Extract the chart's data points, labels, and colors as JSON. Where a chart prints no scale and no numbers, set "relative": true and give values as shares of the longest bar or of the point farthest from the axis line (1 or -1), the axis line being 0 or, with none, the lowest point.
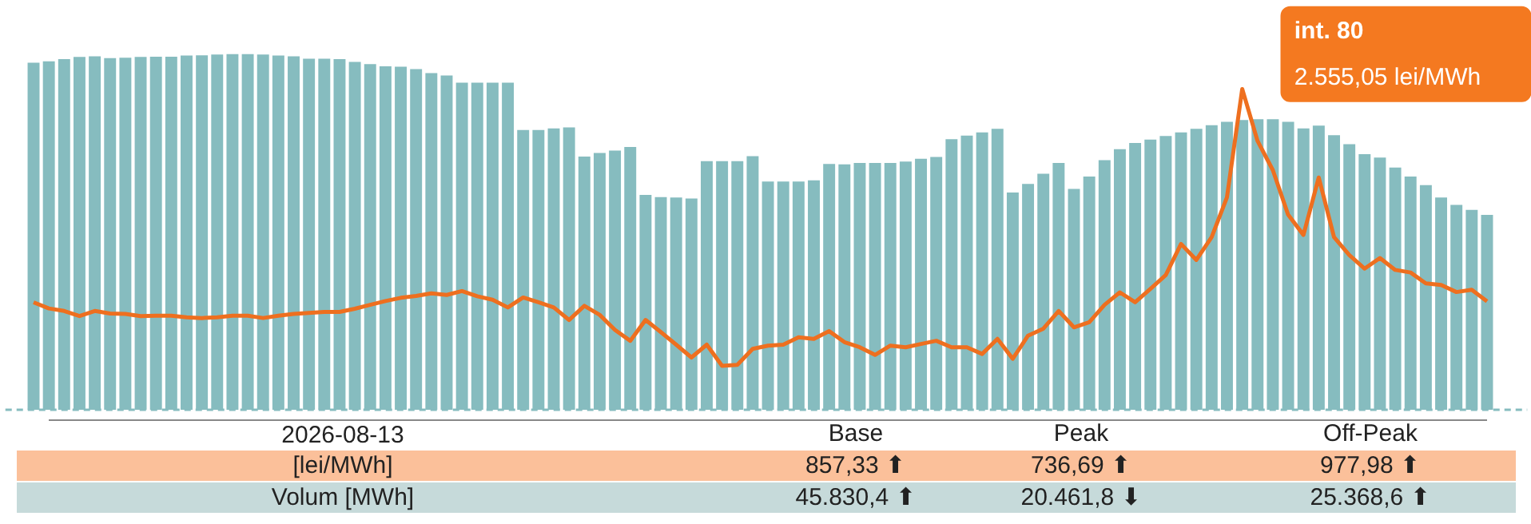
{
  "chart_data": [
    {
      "type": "bar",
      "relative": true,
      "categories": [
        null,
        null,
        null,
        null,
        null,
        null,
        null,
        null,
        null,
        null,
        null,
        null,
        null,
        null,
        null,
        null,
        null,
        null,
        null,
        null,
        null,
        null,
        null,
        null,
        null,
        null,
        null,
        null,
        null,
        null,
        null,
        null,
        null,
        null,
        null,
        null,
        null,
        null,
        null,
        null,
        null,
        null,
        null,
        null,
        null,
        null,
        null,
        null,
        null,
        null,
        null,
        null,
        null,
        null,
        null,
        null,
        null,
        null,
        null,
        null,
        null,
        null,
        null,
        null,
        null,
        null,
        null,
        null,
        null,
        null,
        null,
        null,
        null,
        null,
        null,
        null,
        null,
        null,
        null,
        null,
        null,
        null,
        null,
        null,
        null,
        null,
        null,
        null,
        null,
        null,
        null,
        null,
        null,
        null,
        null,
        null
      ],
      "series": [
        {
          "color": "#86bcbf",
          "values": [
            0.976,
            0.98,
            0.986,
            0.992,
            0.994,
            0.989,
            0.99,
            0.992,
            0.993,
            0.993,
            0.996,
            0.997,
            0.999,
            1,
            1,
            0.999,
            0.996,
            0.994,
            0.987,
            0.987,
            0.986,
            0.978,
            0.972,
            0.966,
            0.965,
            0.958,
            0.947,
            0.94,
            0.92,
            0.92,
            0.92,
            0.92,
            0.787,
            0.787,
            0.791,
            0.794,
            0.712,
            0.722,
            0.729,
            0.739,
            0.604,
            0.598,
            0.597,
            0.594,
            0.699,
            0.699,
            0.699,
            0.713,
            0.642,
            0.642,
            0.642,
            0.645,
            0.691,
            0.69,
            0.694,
            0.694,
            0.694,
            0.698,
            0.706,
            0.711,
            0.761,
            0.771,
            0.78,
            0.79,
            0.611,
            0.635,
            0.664,
            0.694,
            0.621,
            0.656,
            0.702,
            0.733,
            0.75,
            0.76,
            0.77,
            0.78,
            0.79,
            0.8,
            0.81,
            0.815,
            0.817,
            0.817,
            0.81,
            0.791,
            0.799,
            0.772,
            0.747,
            0.719,
            0.709,
            0.681,
            0.656,
            0.632,
            0.597,
            0.576,
            0.562,
            0.548
          ]
        }
      ],
      "annotations": [
        "2026-08-13",
        "Base",
        "Peak",
        "Off-Peak",
        "[lei/MWh]",
        "857,33 ⬆",
        "736,69 ⬆",
        "977,98 ⬆",
        "Volum [MWh]",
        "45.830,4 ⬆",
        "20.461,8 ⬇",
        "25.368,6 ⬆"
      ]
    },
    {
      "type": "line",
      "relative": true,
      "categories": [
        null,
        null,
        null,
        null,
        null,
        null,
        null,
        null,
        null,
        null,
        null,
        null,
        null,
        null,
        null,
        null,
        null,
        null,
        null,
        null,
        null,
        null,
        null,
        null,
        null,
        null,
        null,
        null,
        null,
        null,
        null,
        null,
        null,
        null,
        null,
        null,
        null,
        null,
        null,
        null,
        null,
        null,
        null,
        null,
        null,
        null,
        null,
        null,
        null,
        null,
        null,
        null,
        null,
        null,
        null,
        null,
        null,
        null,
        null,
        null,
        null,
        null,
        null,
        null,
        null,
        null,
        null,
        null,
        null,
        null,
        null,
        null,
        null,
        null,
        null,
        null,
        null,
        null,
        null,
        null,
        null,
        null,
        null,
        null,
        null,
        null,
        null,
        null,
        null,
        null,
        null,
        null,
        null,
        null,
        null,
        null
      ],
      "series": [
        {
          "color": "#ee6f1f",
          "values": [
            0.335,
            0.316,
            0.308,
            0.292,
            0.308,
            0.3,
            0.299,
            0.292,
            0.293,
            0.293,
            0.288,
            0.286,
            0.288,
            0.293,
            0.293,
            0.286,
            0.293,
            0.299,
            0.302,
            0.305,
            0.305,
            0.315,
            0.327,
            0.339,
            0.349,
            0.355,
            0.363,
            0.358,
            0.37,
            0.354,
            0.343,
            0.319,
            0.35,
            0.335,
            0.319,
            0.28,
            0.324,
            0.296,
            0.249,
            0.215,
            0.28,
            0.242,
            0.203,
            0.163,
            0.203,
            0.137,
            0.14,
            0.19,
            0.2,
            0.203,
            0.226,
            0.221,
            0.245,
            0.211,
            0.195,
            0.171,
            0.2,
            0.195,
            0.205,
            0.215,
            0.195,
            0.195,
            0.174,
            0.221,
            0.159,
            0.231,
            0.253,
            0.308,
            0.257,
            0.273,
            0.327,
            0.366,
            0.335,
            0.377,
            0.42,
            0.517,
            0.467,
            0.538,
            0.662,
            1,
            0.838,
            0.747,
            0.608,
            0.545,
            0.724,
            0.538,
            0.482,
            0.44,
            0.473,
            0.436,
            0.428,
            0.394,
            0.389,
            0.367,
            0.374,
            0.338
          ]
        }
      ],
      "annotations": [
        "int. 80\n2.555,05 lei/MWh"
      ]
    }
  ]
}
